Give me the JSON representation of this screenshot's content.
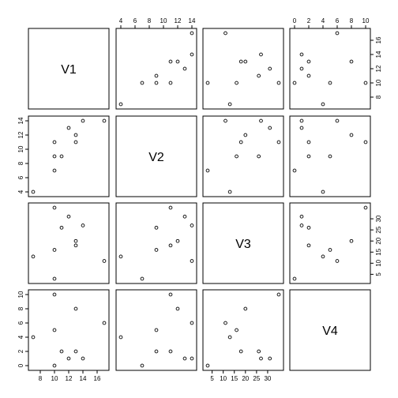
{
  "chart_data": {
    "type": "scatter",
    "variables": [
      {
        "name": "V1",
        "values": [
          7,
          10,
          10,
          10,
          11,
          12,
          13,
          13,
          14,
          17
        ],
        "ticks": [
          8,
          10,
          12,
          14,
          16
        ],
        "range": [
          7,
          17
        ]
      },
      {
        "name": "V2",
        "values": [
          4,
          9,
          7,
          11,
          9,
          13,
          11,
          12,
          14,
          14
        ],
        "ticks": [
          4,
          6,
          8,
          10,
          12,
          14
        ],
        "range": [
          4,
          14
        ]
      },
      {
        "name": "V3",
        "values": [
          13,
          16,
          3,
          35,
          26,
          31,
          18,
          20,
          27,
          11
        ],
        "ticks": [
          5,
          10,
          15,
          20,
          25,
          30
        ],
        "range": [
          3,
          35
        ]
      },
      {
        "name": "V4",
        "values": [
          4,
          5,
          0,
          10,
          2,
          1,
          2,
          8,
          1,
          6
        ],
        "ticks": [
          0,
          2,
          4,
          6,
          8,
          10
        ],
        "range": [
          0,
          10
        ]
      }
    ],
    "title": "",
    "xlabel": "",
    "ylabel": "",
    "grid": false,
    "legend": "none"
  }
}
